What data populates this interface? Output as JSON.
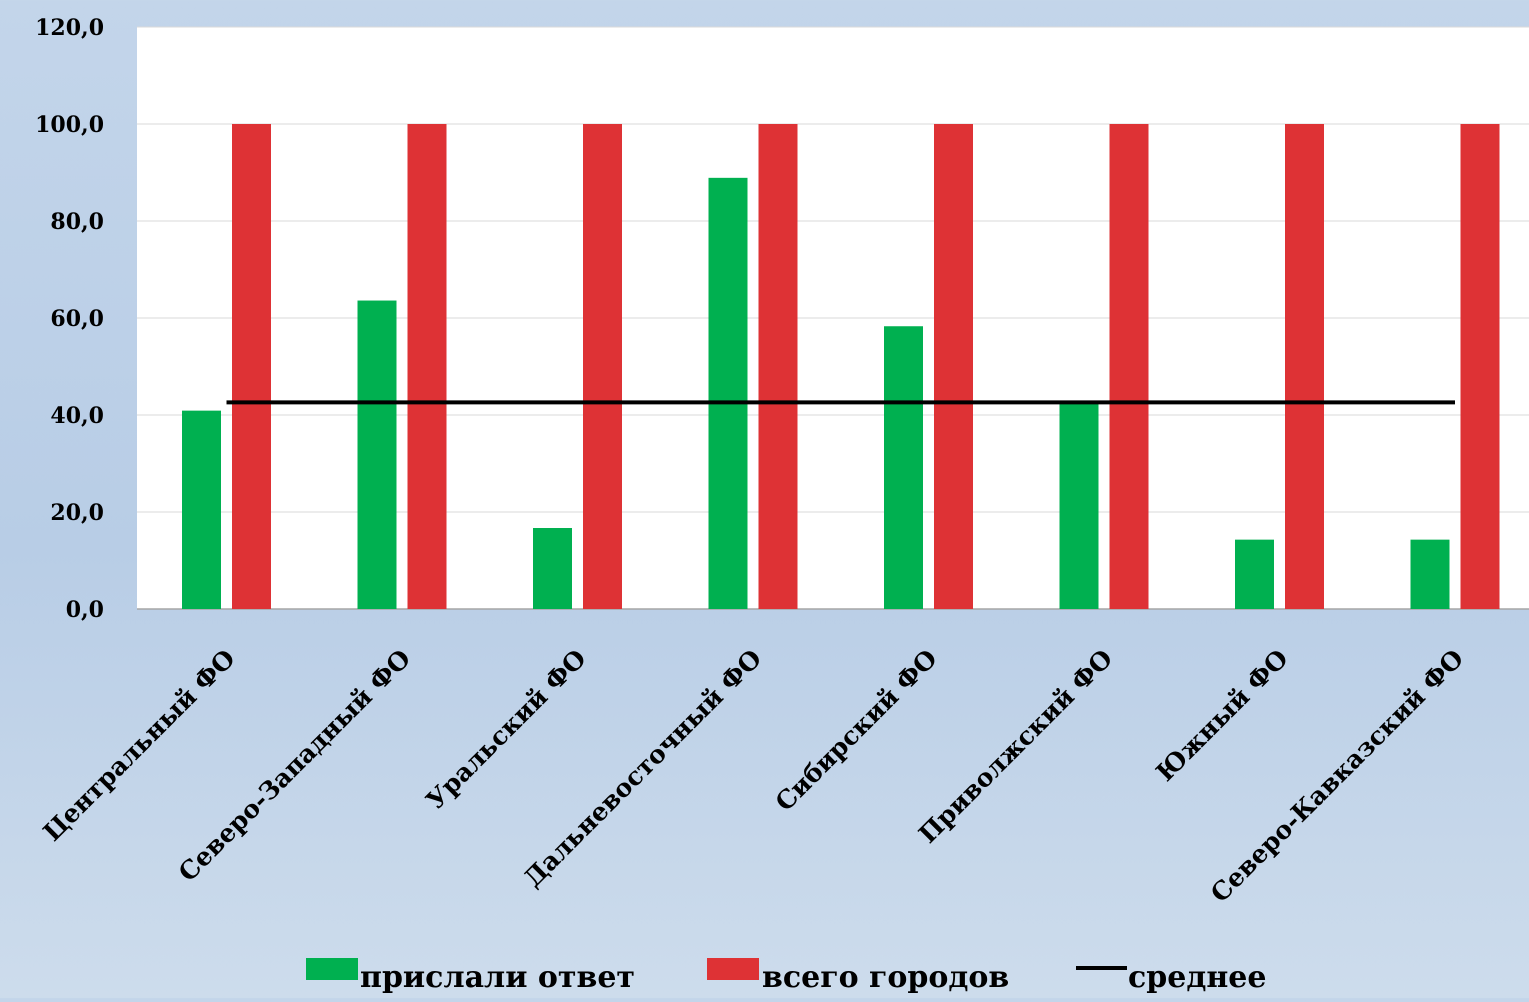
{
  "chart_data": {
    "type": "bar",
    "categories": [
      "Центральный ФО",
      "Северо-Западный ФО",
      "Уральский ФО",
      "Дальневосточный ФО",
      "Сибирский ФО",
      "Приволжский ФО",
      "Южный ФО",
      "Северо-Кавказский ФО"
    ],
    "series": [
      {
        "name": "прислали ответ",
        "type": "bar",
        "color": "#00b050",
        "values": [
          40.9,
          63.6,
          16.7,
          88.9,
          58.3,
          42.3,
          14.3,
          14.3
        ]
      },
      {
        "name": "всего городов",
        "type": "bar",
        "color": "#de3235",
        "values": [
          100,
          100,
          100,
          100,
          100,
          100,
          100,
          100
        ]
      },
      {
        "name": "среднее",
        "type": "line",
        "color": "#000000",
        "values": [
          42.6,
          42.6,
          42.6,
          42.6,
          42.6,
          42.6,
          42.6,
          42.6
        ]
      }
    ],
    "yticks": [
      "0,0",
      "20,0",
      "40,0",
      "60,0",
      "80,0",
      "100,0",
      "120,0"
    ],
    "ylim": [
      0,
      120
    ],
    "grid": true,
    "legend_position": "bottom",
    "title": "",
    "xlabel": "",
    "ylabel": ""
  }
}
